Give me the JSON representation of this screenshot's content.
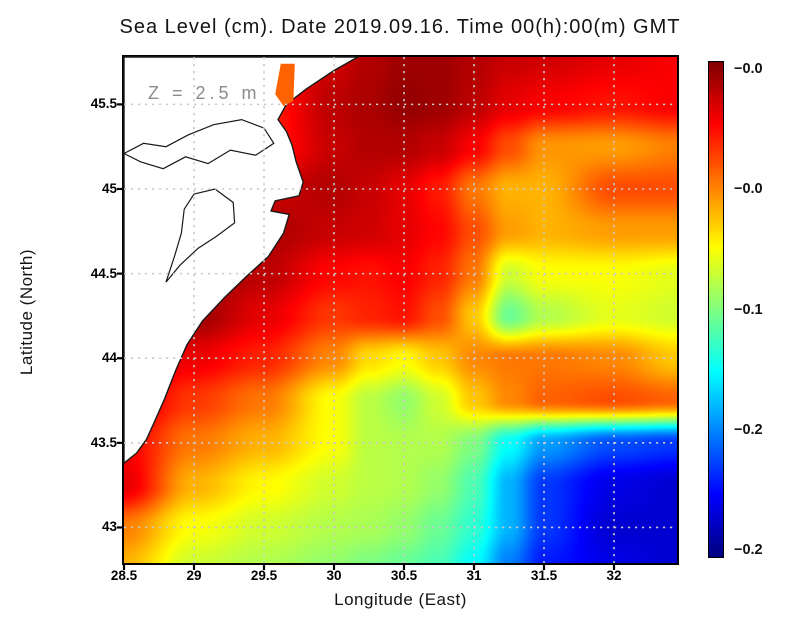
{
  "title": "Sea Level (cm). Date 2019.09.16. Time 00(h):00(m) GMT",
  "annotation": "Z = 2.5 m",
  "axes": {
    "x_label": "Longitude (East)",
    "y_label": "Latitude (North)",
    "x_tick_labels": [
      "28.5",
      "29",
      "29.5",
      "30",
      "30.5",
      "31",
      "31.5",
      "32"
    ],
    "y_tick_labels": [
      "45.5",
      "45",
      "44.5",
      "44",
      "43.5",
      "43"
    ]
  },
  "colorbar": {
    "orientation": "vertical",
    "colormap": "jet",
    "tick_labels": [
      "−0.0",
      "−0.0",
      "−0.1",
      "−0.2",
      "−0.2"
    ]
  },
  "chart_data": {
    "type": "heatmap",
    "title": "Sea Level (cm). Date 2019.09.16. Time 00(h):00(m) GMT",
    "xlabel": "Longitude (East)",
    "ylabel": "Latitude (North)",
    "xlim": [
      28.5,
      32.45
    ],
    "ylim": [
      42.79,
      45.78
    ],
    "x_ticks": [
      28.5,
      29,
      29.5,
      30,
      30.5,
      31,
      31.5,
      32
    ],
    "y_ticks": [
      43,
      43.5,
      44,
      44.5,
      45,
      45.5
    ],
    "grid_on": true,
    "value_range": [
      -0.24,
      0.0
    ],
    "colorbar_tick_labels": [
      "−0.0",
      "−0.0",
      "−0.1",
      "−0.2",
      "−0.2"
    ],
    "depth_annotation": "Z = 2.5 m",
    "grid": {
      "lons": [
        28.5,
        29.0,
        29.5,
        30.0,
        30.25,
        30.5,
        30.75,
        31.0,
        31.25,
        31.5,
        32.0,
        32.45
      ],
      "lats": [
        45.78,
        45.5,
        45.25,
        45.0,
        44.75,
        44.5,
        44.25,
        44.0,
        43.75,
        43.5,
        43.25,
        43.0,
        42.79
      ],
      "sea_level": [
        [
          -0.024,
          -0.024,
          -0.036,
          -0.019,
          -0.012,
          -0.007,
          -0.007,
          -0.012,
          -0.017,
          -0.019,
          -0.024,
          -0.029
        ],
        [
          -0.029,
          -0.029,
          -0.038,
          -0.014,
          -0.01,
          -0.005,
          -0.007,
          -0.014,
          -0.024,
          -0.029,
          -0.034,
          -0.029
        ],
        [
          -0.029,
          -0.029,
          -0.038,
          -0.017,
          -0.012,
          -0.012,
          -0.017,
          -0.029,
          -0.048,
          -0.065,
          -0.067,
          -0.06
        ],
        [
          -0.024,
          -0.024,
          -0.019,
          -0.012,
          -0.017,
          -0.024,
          -0.036,
          -0.058,
          -0.072,
          -0.072,
          -0.048,
          -0.048
        ],
        [
          -0.012,
          -0.012,
          -0.01,
          -0.017,
          -0.019,
          -0.024,
          -0.031,
          -0.048,
          -0.067,
          -0.072,
          -0.067,
          -0.067
        ],
        [
          -0.007,
          -0.005,
          -0.014,
          -0.031,
          -0.034,
          -0.029,
          -0.038,
          -0.058,
          -0.101,
          -0.091,
          -0.091,
          -0.096
        ],
        [
          -0.007,
          -0.007,
          -0.024,
          -0.043,
          -0.038,
          -0.034,
          -0.048,
          -0.077,
          -0.125,
          -0.108,
          -0.096,
          -0.101
        ],
        [
          -0.017,
          -0.026,
          -0.038,
          -0.062,
          -0.082,
          -0.089,
          -0.077,
          -0.062,
          -0.058,
          -0.058,
          -0.062,
          -0.077
        ],
        [
          -0.019,
          -0.043,
          -0.058,
          -0.091,
          -0.106,
          -0.115,
          -0.101,
          -0.077,
          -0.062,
          -0.053,
          -0.048,
          -0.053
        ],
        [
          -0.029,
          -0.058,
          -0.072,
          -0.091,
          -0.106,
          -0.108,
          -0.108,
          -0.12,
          -0.149,
          -0.173,
          -0.192,
          -0.197
        ],
        [
          -0.024,
          -0.072,
          -0.089,
          -0.101,
          -0.106,
          -0.108,
          -0.115,
          -0.132,
          -0.168,
          -0.197,
          -0.216,
          -0.221
        ],
        [
          -0.06,
          -0.091,
          -0.101,
          -0.108,
          -0.11,
          -0.115,
          -0.125,
          -0.139,
          -0.168,
          -0.197,
          -0.221,
          -0.221
        ],
        [
          -0.072,
          -0.101,
          -0.108,
          -0.115,
          -0.12,
          -0.125,
          -0.132,
          -0.149,
          -0.18,
          -0.204,
          -0.216,
          -0.221
        ]
      ]
    },
    "land_mask_polygon": [
      [
        30.17,
        45.78
      ],
      [
        30.0,
        45.7
      ],
      [
        29.8,
        45.59
      ],
      [
        29.66,
        45.5
      ],
      [
        29.6,
        45.41
      ],
      [
        29.66,
        45.34
      ],
      [
        29.7,
        45.26
      ],
      [
        29.73,
        45.16
      ],
      [
        29.78,
        45.04
      ],
      [
        29.75,
        44.96
      ],
      [
        29.58,
        44.93
      ],
      [
        29.55,
        44.87
      ],
      [
        29.68,
        44.85
      ],
      [
        29.64,
        44.74
      ],
      [
        29.53,
        44.6
      ],
      [
        29.37,
        44.48
      ],
      [
        29.22,
        44.36
      ],
      [
        29.06,
        44.22
      ],
      [
        28.95,
        44.08
      ],
      [
        28.87,
        43.93
      ],
      [
        28.79,
        43.76
      ],
      [
        28.71,
        43.61
      ],
      [
        28.66,
        43.52
      ],
      [
        28.59,
        43.44
      ],
      [
        28.5,
        43.38
      ],
      [
        28.5,
        45.78
      ]
    ],
    "lagoon_outlines": [
      [
        [
          28.5,
          45.21
        ],
        [
          28.64,
          45.27
        ],
        [
          28.8,
          45.25
        ],
        [
          28.96,
          45.32
        ],
        [
          29.14,
          45.38
        ],
        [
          29.34,
          45.41
        ],
        [
          29.5,
          45.36
        ],
        [
          29.57,
          45.27
        ],
        [
          29.44,
          45.2
        ],
        [
          29.26,
          45.23
        ],
        [
          29.1,
          45.15
        ],
        [
          28.94,
          45.19
        ],
        [
          28.78,
          45.12
        ],
        [
          28.62,
          45.16
        ],
        [
          28.5,
          45.21
        ]
      ],
      [
        [
          29.0,
          44.97
        ],
        [
          29.15,
          45.0
        ],
        [
          29.28,
          44.92
        ],
        [
          29.29,
          44.8
        ],
        [
          29.16,
          44.72
        ],
        [
          29.03,
          44.65
        ],
        [
          28.9,
          44.55
        ],
        [
          28.8,
          44.45
        ],
        [
          28.86,
          44.6
        ],
        [
          28.91,
          44.74
        ],
        [
          28.93,
          44.88
        ],
        [
          29.0,
          44.97
        ]
      ]
    ],
    "shallow_patch": {
      "polygon": [
        [
          29.62,
          45.74
        ],
        [
          29.72,
          45.74
        ],
        [
          29.71,
          45.52
        ],
        [
          29.64,
          45.49
        ],
        [
          29.58,
          45.56
        ]
      ],
      "color": "#ff6200"
    },
    "colors": {
      "land": "#ffffff",
      "coastline": "#1a1a1a",
      "gridline": "#c9c9c9",
      "frame": "#000000",
      "annotation": "#8c8c8c"
    }
  }
}
